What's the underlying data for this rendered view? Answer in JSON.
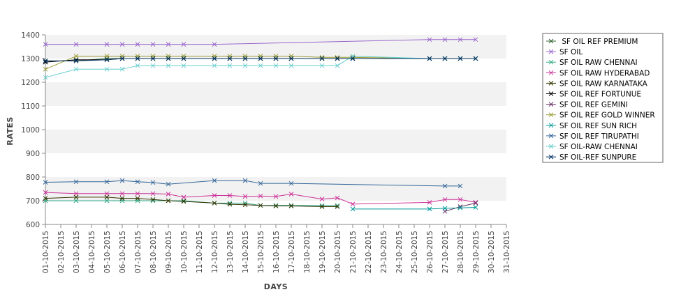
{
  "chart_data": {
    "type": "line",
    "xlabel": "DAYS",
    "ylabel": "RATES",
    "ylim": [
      600,
      1400
    ],
    "yticks": [
      600,
      700,
      800,
      900,
      1000,
      1100,
      1200,
      1300,
      1400
    ],
    "grid": "alternating horizontal bands",
    "legend_position": "right",
    "categories": [
      "01-10-2015",
      "02-10-2015",
      "03-10-2015",
      "04-10-2015",
      "05-10-2015",
      "06-10-2015",
      "07-10-2015",
      "08-10-2015",
      "09-10-2015",
      "10-10-2015",
      "11-10-2015",
      "12-10-2015",
      "13-10-2015",
      "14-10-2015",
      "15-10-2015",
      "16-10-2015",
      "17-10-2015",
      "18-10-2015",
      "19-10-2015",
      "20-10-2015",
      "21-10-2015",
      "22-10-2015",
      "23-10-2015",
      "24-10-2015",
      "25-10-2015",
      "26-10-2015",
      "27-10-2015",
      "28-10-2015",
      "29-10-2015",
      "30-10-2015",
      "31-10-2015"
    ],
    "series": [
      {
        "name": " SF OIL REF PREMIUM",
        "color": "#336633",
        "values": [
          1290,
          null,
          1290,
          null,
          1300,
          1300,
          1300,
          1300,
          1300,
          1300,
          null,
          1300,
          1300,
          1300,
          1300,
          1300,
          1300,
          null,
          1300,
          1300,
          1300,
          null,
          null,
          null,
          null,
          1300,
          1300,
          1300,
          1300,
          null,
          null
        ]
      },
      {
        "name": "SF OIL",
        "color": "#9966cc",
        "values": [
          1360,
          null,
          1360,
          null,
          1360,
          1360,
          1360,
          1360,
          1360,
          1360,
          null,
          1360,
          null,
          null,
          null,
          null,
          null,
          null,
          null,
          null,
          null,
          null,
          null,
          null,
          null,
          1380,
          1380,
          1380,
          1380,
          null,
          null
        ]
      },
      {
        "name": "SF OIL RAW CHENNAI",
        "color": "#33aa88",
        "values": [
          700,
          null,
          700,
          null,
          700,
          700,
          700,
          700,
          700,
          700,
          null,
          690,
          690,
          690,
          680,
          680,
          680,
          null,
          680,
          680,
          null,
          null,
          null,
          null,
          null,
          null,
          null,
          null,
          null,
          null,
          null
        ]
      },
      {
        "name": "SF OIL RAW HYDERABAD",
        "color": "#cc3399",
        "values": [
          735,
          null,
          730,
          null,
          730,
          730,
          730,
          730,
          728,
          715,
          null,
          722,
          722,
          718,
          720,
          718,
          728,
          null,
          707,
          712,
          686,
          null,
          null,
          null,
          null,
          693,
          705,
          705,
          693,
          null,
          null
        ]
      },
      {
        "name": "SF OIL RAW KARNATAKA",
        "color": "#333300",
        "values": [
          710,
          null,
          715,
          null,
          715,
          710,
          710,
          705,
          700,
          697,
          null,
          690,
          685,
          683,
          680,
          678,
          678,
          null,
          675,
          675,
          null,
          null,
          null,
          null,
          null,
          null,
          null,
          null,
          null,
          null,
          null
        ]
      },
      {
        "name": "SF OIL REF FORTUNUE",
        "color": "#000000",
        "values": [
          1285,
          null,
          1295,
          null,
          1295,
          1300,
          1300,
          1300,
          1300,
          1300,
          null,
          1300,
          1300,
          1300,
          1300,
          1300,
          1300,
          null,
          1300,
          1300,
          1300,
          null,
          null,
          null,
          null,
          1300,
          1300,
          1300,
          1300,
          null,
          null
        ]
      },
      {
        "name": "SF OIL REF GEMINI",
        "color": "#663366",
        "values": [
          null,
          null,
          null,
          null,
          null,
          null,
          null,
          null,
          null,
          null,
          null,
          null,
          null,
          null,
          null,
          null,
          null,
          null,
          null,
          null,
          null,
          null,
          null,
          null,
          null,
          null,
          655,
          675,
          690,
          null,
          null
        ]
      },
      {
        "name": "SF OIL REF GOLD WINNER",
        "color": "#999933",
        "values": [
          1255,
          null,
          1310,
          null,
          1310,
          1310,
          1310,
          1310,
          1310,
          1310,
          null,
          1310,
          1310,
          1310,
          1310,
          1310,
          1310,
          null,
          1305,
          1305,
          1305,
          null,
          null,
          null,
          null,
          1300,
          1300,
          1300,
          1300,
          null,
          null
        ]
      },
      {
        "name": "SF OIL REF SUN RICH",
        "color": "#009999",
        "values": [
          null,
          null,
          null,
          null,
          null,
          null,
          null,
          null,
          null,
          null,
          null,
          null,
          null,
          null,
          null,
          null,
          null,
          null,
          null,
          null,
          665,
          null,
          null,
          null,
          null,
          665,
          668,
          670,
          672,
          null,
          null
        ]
      },
      {
        "name": "SF OIL REF TIRUPATHI",
        "color": "#336699",
        "values": [
          778,
          null,
          780,
          null,
          780,
          785,
          780,
          777,
          770,
          null,
          null,
          785,
          null,
          785,
          773,
          null,
          773,
          null,
          null,
          null,
          null,
          null,
          null,
          null,
          null,
          null,
          762,
          762,
          null,
          null,
          null
        ]
      },
      {
        "name": "SF OIL-RAW CHENNAI",
        "color": "#66cccc",
        "values": [
          1220,
          null,
          1255,
          null,
          1255,
          1255,
          1270,
          1270,
          1270,
          1270,
          null,
          1270,
          1270,
          1270,
          1270,
          1270,
          1270,
          null,
          1270,
          1270,
          1310,
          null,
          null,
          null,
          null,
          1300,
          1300,
          1300,
          1300,
          null,
          null
        ]
      },
      {
        "name": "SF OIL-REF SUNPURE",
        "color": "#003366",
        "values": [
          1290,
          null,
          1290,
          null,
          1295,
          1300,
          1300,
          1300,
          1300,
          1300,
          null,
          1300,
          1300,
          1300,
          1300,
          1300,
          1300,
          null,
          1300,
          1300,
          1300,
          null,
          null,
          null,
          null,
          1300,
          1300,
          1300,
          1300,
          null,
          null
        ]
      }
    ]
  }
}
